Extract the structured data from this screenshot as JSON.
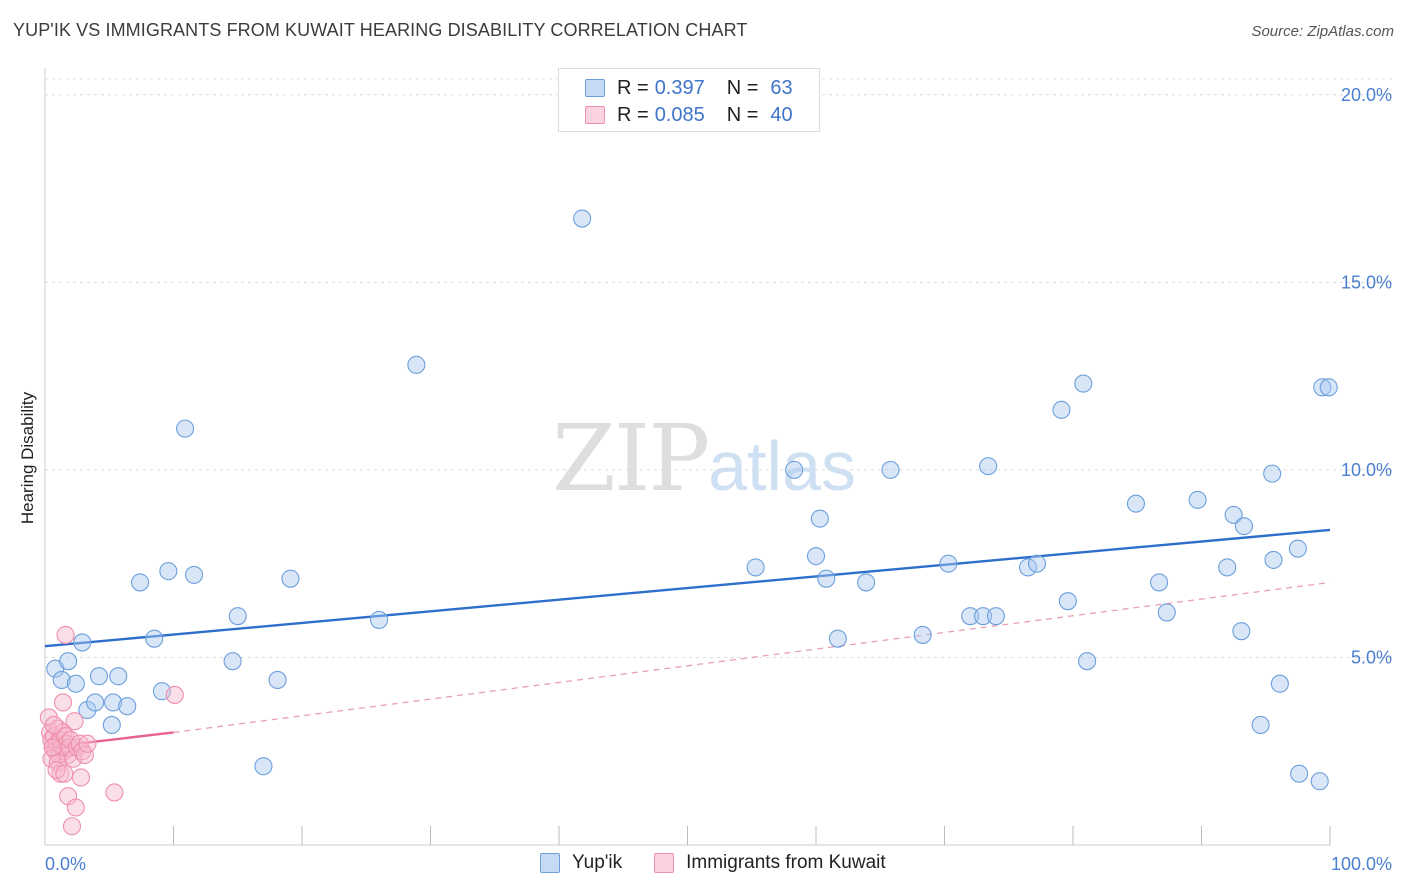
{
  "header": {
    "title": "YUP'IK VS IMMIGRANTS FROM KUWAIT HEARING DISABILITY CORRELATION CHART",
    "source": "Source: ZipAtlas.com"
  },
  "watermark": {
    "zip": "ZIP",
    "atlas": "atlas"
  },
  "legend": {
    "rows": [
      {
        "r_label": "R =",
        "r_value": "0.397",
        "n_label": "N =",
        "n_value": "63",
        "color": "#a9c8f0"
      },
      {
        "r_label": "R =",
        "r_value": "0.085",
        "n_label": "N =",
        "n_value": "40",
        "color": "#f7b8cb"
      }
    ]
  },
  "bottom_legend": {
    "items": [
      {
        "label": "Yup'ik",
        "color": "#a9c8f0"
      },
      {
        "label": "Immigrants from Kuwait",
        "color": "#f7b8cb"
      }
    ]
  },
  "chart_data": {
    "type": "scatter",
    "title": "YUP'IK VS IMMIGRANTS FROM KUWAIT HEARING DISABILITY CORRELATION CHART",
    "xlabel": "",
    "ylabel": "Hearing Disability",
    "xlim": [
      0,
      100
    ],
    "ylim": [
      0,
      20.5
    ],
    "x_tick_labels": [
      "0.0%",
      "100.0%"
    ],
    "y_ticks": [
      5,
      10,
      15,
      20
    ],
    "y_tick_labels": [
      "5.0%",
      "10.0%",
      "15.0%",
      "20.0%"
    ],
    "grid": true,
    "series": [
      {
        "name": "Yup'ik",
        "color": "#a9c8f0",
        "stroke": "#6d9fdc",
        "trend": {
          "x": [
            0,
            100
          ],
          "y": [
            5.3,
            8.4
          ],
          "color": "#2f6fcc",
          "dashed": false
        },
        "points": [
          [
            0.8,
            4.7
          ],
          [
            1.3,
            4.4
          ],
          [
            1.8,
            4.9
          ],
          [
            2.4,
            4.3
          ],
          [
            2.9,
            5.4
          ],
          [
            3.3,
            3.6
          ],
          [
            3.9,
            3.8
          ],
          [
            4.2,
            4.5
          ],
          [
            5.3,
            3.8
          ],
          [
            5.7,
            4.5
          ],
          [
            6.4,
            3.7
          ],
          [
            5.2,
            3.2
          ],
          [
            7.4,
            7.0
          ],
          [
            8.5,
            5.5
          ],
          [
            9.1,
            4.1
          ],
          [
            9.6,
            7.3
          ],
          [
            10.9,
            11.1
          ],
          [
            11.6,
            7.2
          ],
          [
            14.6,
            4.9
          ],
          [
            15.0,
            6.1
          ],
          [
            17.0,
            2.1
          ],
          [
            18.1,
            4.4
          ],
          [
            19.1,
            7.1
          ],
          [
            26.0,
            6.0
          ],
          [
            28.9,
            12.8
          ],
          [
            41.8,
            16.7
          ],
          [
            55.3,
            7.4
          ],
          [
            58.3,
            10.0
          ],
          [
            60.0,
            7.7
          ],
          [
            60.3,
            8.7
          ],
          [
            60.8,
            7.1
          ],
          [
            61.7,
            5.5
          ],
          [
            63.9,
            7.0
          ],
          [
            65.8,
            10.0
          ],
          [
            68.3,
            5.6
          ],
          [
            70.3,
            7.5
          ],
          [
            72.0,
            6.1
          ],
          [
            73.0,
            6.1
          ],
          [
            73.4,
            10.1
          ],
          [
            74.0,
            6.1
          ],
          [
            76.5,
            7.4
          ],
          [
            77.2,
            7.5
          ],
          [
            79.1,
            11.6
          ],
          [
            79.6,
            6.5
          ],
          [
            80.8,
            12.3
          ],
          [
            81.1,
            4.9
          ],
          [
            84.9,
            9.1
          ],
          [
            86.7,
            7.0
          ],
          [
            87.3,
            6.2
          ],
          [
            89.7,
            9.2
          ],
          [
            92.0,
            7.4
          ],
          [
            92.5,
            8.8
          ],
          [
            93.1,
            5.7
          ],
          [
            93.3,
            8.5
          ],
          [
            94.6,
            3.2
          ],
          [
            95.5,
            9.9
          ],
          [
            95.6,
            7.6
          ],
          [
            96.1,
            4.3
          ],
          [
            97.6,
            1.9
          ],
          [
            97.5,
            7.9
          ],
          [
            99.4,
            12.2
          ],
          [
            99.9,
            12.2
          ],
          [
            99.2,
            1.7
          ]
        ]
      },
      {
        "name": "Immigrants from Kuwait",
        "color": "#f7b8cb",
        "stroke": "#ee8fac",
        "trend": {
          "x": [
            0,
            10
          ],
          "y": [
            2.6,
            3.0
          ],
          "color": "#e8628e",
          "dashed": false
        },
        "trend_extension": {
          "x": [
            10,
            100
          ],
          "y": [
            3.0,
            7.0
          ],
          "color": "#e8a0b6",
          "dashed": true
        },
        "points": [
          [
            0.3,
            3.4
          ],
          [
            0.4,
            3.0
          ],
          [
            0.5,
            2.8
          ],
          [
            0.6,
            2.6
          ],
          [
            0.7,
            2.9
          ],
          [
            0.8,
            2.5
          ],
          [
            0.9,
            2.7
          ],
          [
            1.0,
            3.1
          ],
          [
            1.1,
            2.4
          ],
          [
            1.2,
            2.8
          ],
          [
            1.3,
            2.6
          ],
          [
            1.4,
            3.0
          ],
          [
            1.5,
            2.5
          ],
          [
            1.6,
            2.9
          ],
          [
            1.7,
            2.7
          ],
          [
            1.8,
            2.4
          ],
          [
            0.5,
            2.3
          ],
          [
            0.7,
            3.2
          ],
          [
            1.0,
            2.2
          ],
          [
            1.2,
            1.9
          ],
          [
            1.4,
            3.8
          ],
          [
            1.6,
            5.6
          ],
          [
            1.9,
            2.6
          ],
          [
            2.0,
            2.8
          ],
          [
            2.2,
            2.3
          ],
          [
            2.3,
            3.3
          ],
          [
            2.5,
            2.6
          ],
          [
            2.7,
            2.7
          ],
          [
            2.9,
            2.5
          ],
          [
            0.9,
            2.0
          ],
          [
            1.5,
            1.9
          ],
          [
            1.8,
            1.3
          ],
          [
            2.1,
            0.5
          ],
          [
            2.4,
            1.0
          ],
          [
            2.8,
            1.8
          ],
          [
            3.1,
            2.4
          ],
          [
            3.3,
            2.7
          ],
          [
            5.4,
            1.4
          ],
          [
            10.1,
            4.0
          ],
          [
            0.6,
            2.6
          ]
        ]
      }
    ]
  }
}
